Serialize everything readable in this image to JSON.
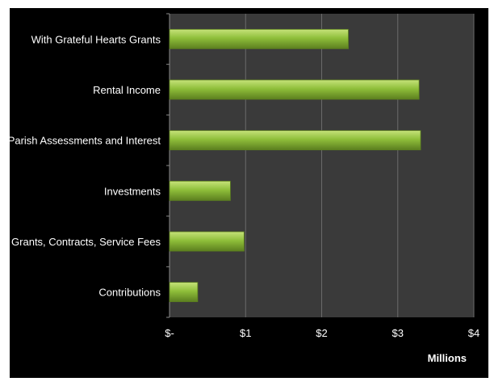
{
  "chart_data": {
    "type": "bar",
    "orientation": "horizontal",
    "categories": [
      "With Grateful Hearts Grants",
      "Rental Income",
      "Parish Assessments and Interest",
      "Investments",
      "Grants, Contracts,  Service Fees",
      "Contributions"
    ],
    "values": [
      2.35,
      3.28,
      3.3,
      0.8,
      0.98,
      0.37
    ],
    "xlim": [
      0,
      4
    ],
    "x_ticks": [
      0,
      1,
      2,
      3,
      4
    ],
    "x_tick_labels": [
      "$-",
      "$1",
      "$2",
      "$3",
      "$4"
    ],
    "x_unit_label": "Millions",
    "grid": "vertical",
    "legend": "none"
  },
  "colors": {
    "plot_background": "#3a3a3a",
    "outer_background": "#000000",
    "bar_fill": "#8fbf3a",
    "bar_highlight": "#c6e27a",
    "bar_shadow": "#5c7f1f",
    "gridline": "#6a6a6a",
    "text": "#ffffff"
  }
}
